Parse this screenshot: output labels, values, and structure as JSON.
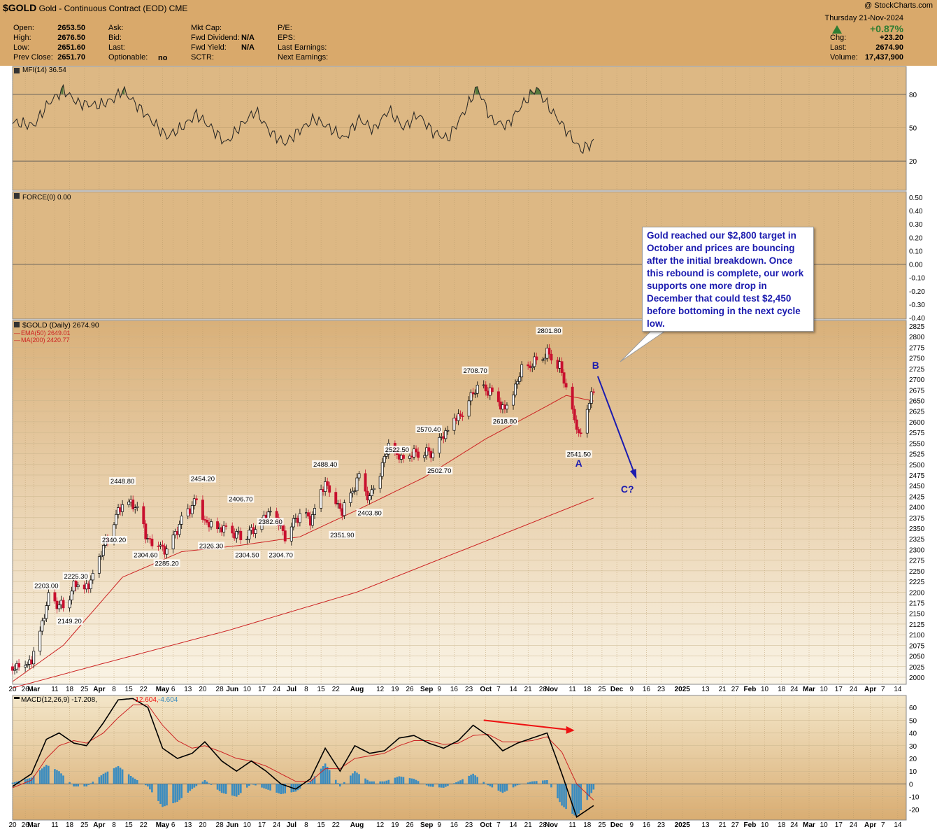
{
  "header": {
    "symbol": "$GOLD",
    "name": "Gold - Continuous Contract (EOD)",
    "exchange": "CME",
    "date": "Thursday  21-Nov-2024",
    "watermark": "@ StockCharts.com",
    "pct_change": "+0.87%",
    "quote": [
      {
        "label": "Open:",
        "value": "2653.50"
      },
      {
        "label": "High:",
        "value": "2676.50"
      },
      {
        "label": "Low:",
        "value": "2651.60"
      },
      {
        "label": "Prev Close:",
        "value": "2651.70"
      }
    ],
    "col2": [
      {
        "label": "Ask:",
        "value": ""
      },
      {
        "label": "Bid:",
        "value": ""
      },
      {
        "label": "Last:",
        "value": ""
      },
      {
        "label": "Optionable:",
        "value": "no"
      }
    ],
    "col3": [
      {
        "label": "Mkt Cap:",
        "value": ""
      },
      {
        "label": "Fwd Dividend:",
        "value": "N/A"
      },
      {
        "label": "Fwd Yield:",
        "value": "N/A"
      },
      {
        "label": "SCTR:",
        "value": ""
      }
    ],
    "col4": [
      "P/E:",
      "EPS:",
      "Last Earnings:",
      "Next Earnings:"
    ],
    "right": [
      {
        "label": "Chg:",
        "value": "+23.20"
      },
      {
        "label": "Last:",
        "value": "2674.90"
      },
      {
        "label": "Volume:",
        "value": "17,437,900"
      }
    ]
  },
  "colors": {
    "header_bg": "#d9a96b",
    "panel_bg": "#ddb884",
    "price_bg_top": "#d9b079",
    "price_bg_bottom": "#faf4e6",
    "up": "#000000",
    "down": "#c8102e",
    "ma": "#cc2222",
    "mfi_fill": "#3f6e2f",
    "hist": "#3a8cc0",
    "annot_text": "#1b1baf",
    "arrow": "#1b1baf",
    "divergence": "#ee1111"
  },
  "chart_data": [
    {
      "type": "line",
      "title": "MFI(14) 36.54",
      "ylim": [
        0,
        100
      ],
      "yticks": [
        20,
        50,
        80
      ],
      "x": [
        "2024-02-20",
        "2024-03-01",
        "2024-03-08",
        "2024-03-15",
        "2024-03-22",
        "2024-04-01",
        "2024-04-08",
        "2024-04-12",
        "2024-04-19",
        "2024-04-26",
        "2024-05-03",
        "2024-05-10",
        "2024-05-17",
        "2024-05-24",
        "2024-05-31",
        "2024-06-07",
        "2024-06-14",
        "2024-06-21",
        "2024-06-28",
        "2024-07-05",
        "2024-07-12",
        "2024-07-19",
        "2024-07-26",
        "2024-08-02",
        "2024-08-09",
        "2024-08-16",
        "2024-08-23",
        "2024-08-30",
        "2024-09-06",
        "2024-09-13",
        "2024-09-20",
        "2024-09-27",
        "2024-10-04",
        "2024-10-11",
        "2024-10-18",
        "2024-10-25",
        "2024-10-31",
        "2024-11-08",
        "2024-11-15",
        "2024-11-21"
      ],
      "y": [
        55,
        52,
        72,
        84,
        72,
        70,
        76,
        84,
        70,
        56,
        42,
        50,
        62,
        50,
        36,
        52,
        65,
        46,
        36,
        48,
        58,
        50,
        40,
        58,
        48,
        66,
        50,
        62,
        46,
        40,
        62,
        86,
        56,
        52,
        70,
        86,
        68,
        48,
        30,
        37
      ]
    },
    {
      "type": "line",
      "title": "FORCE(0) 0.00",
      "ylim": [
        -0.5,
        0.5
      ],
      "yticks": [
        0.5,
        0.4,
        0.3,
        0.2,
        0.1,
        0.0,
        -0.1,
        -0.2,
        -0.3,
        -0.4
      ],
      "tick_labels": [
        "0.50",
        "0.40",
        "0.30",
        "0.20",
        "0.10",
        "0.00",
        "-0.10",
        "-0.20",
        "-0.30",
        "-0.40"
      ],
      "x": [
        "2024-02-20",
        "2024-11-21"
      ],
      "y": [
        0,
        0
      ]
    },
    {
      "type": "candlestick",
      "title": "$GOLD (Daily) 2674.90",
      "series_names": [
        "EMA(50) 2649.01",
        "MA(200) 2420.77"
      ],
      "ylim": [
        1975,
        2840
      ],
      "yticks": [
        2000,
        2025,
        2050,
        2075,
        2100,
        2125,
        2150,
        2175,
        2200,
        2225,
        2250,
        2275,
        2300,
        2325,
        2350,
        2375,
        2400,
        2425,
        2450,
        2475,
        2500,
        2525,
        2550,
        2575,
        2600,
        2625,
        2650,
        2675,
        2700,
        2725,
        2750,
        2775,
        2800,
        2825
      ],
      "close_anchors": {
        "x": [
          "2024-02-20",
          "2024-02-29",
          "2024-03-08",
          "2024-03-15",
          "2024-03-20",
          "2024-03-27",
          "2024-04-05",
          "2024-04-12",
          "2024-04-19",
          "2024-04-23",
          "2024-05-03",
          "2024-05-10",
          "2024-05-17",
          "2024-05-22",
          "2024-05-31",
          "2024-06-07",
          "2024-06-14",
          "2024-06-21",
          "2024-06-28",
          "2024-07-05",
          "2024-07-10",
          "2024-07-17",
          "2024-07-25",
          "2024-08-02",
          "2024-08-07",
          "2024-08-16",
          "2024-08-22",
          "2024-08-30",
          "2024-09-06",
          "2024-09-13",
          "2024-09-20",
          "2024-09-26",
          "2024-10-03",
          "2024-10-10",
          "2024-10-18",
          "2024-10-23",
          "2024-10-30",
          "2024-11-05",
          "2024-11-14",
          "2024-11-21"
        ],
        "y": [
          2025,
          2040,
          2185,
          2165,
          2215,
          2210,
          2330,
          2410,
          2400,
          2330,
          2300,
          2370,
          2420,
          2360,
          2345,
          2330,
          2345,
          2390,
          2335,
          2385,
          2370,
          2460,
          2390,
          2470,
          2420,
          2540,
          2510,
          2528,
          2525,
          2585,
          2625,
          2680,
          2675,
          2630,
          2720,
          2735,
          2760,
          2730,
          2565,
          2675
        ]
      },
      "ema50": {
        "x": [
          "2024-02-20",
          "2024-03-15",
          "2024-04-12",
          "2024-05-10",
          "2024-06-07",
          "2024-07-05",
          "2024-08-02",
          "2024-09-02",
          "2024-10-01",
          "2024-10-31",
          "2024-11-08",
          "2024-11-21"
        ],
        "y": [
          1990,
          2075,
          2235,
          2295,
          2310,
          2330,
          2395,
          2470,
          2560,
          2640,
          2662,
          2649
        ]
      },
      "ma200": {
        "x": [
          "2024-02-20",
          "2024-04-01",
          "2024-06-01",
          "2024-08-01",
          "2024-10-01",
          "2024-11-21"
        ],
        "y": [
          1975,
          2030,
          2110,
          2200,
          2320,
          2421
        ]
      },
      "annotations": [
        {
          "text": "2203.00",
          "x": "2024-03-07",
          "y": 2203
        },
        {
          "text": "2225.30",
          "x": "2024-03-21",
          "y": 2225.3
        },
        {
          "text": "2149.20",
          "x": "2024-03-18",
          "y": 2149.2
        },
        {
          "text": "2448.80",
          "x": "2024-04-12",
          "y": 2448.8
        },
        {
          "text": "2340.20",
          "x": "2024-04-08",
          "y": 2340.2
        },
        {
          "text": "2304.60",
          "x": "2024-04-23",
          "y": 2304.6
        },
        {
          "text": "2285.20",
          "x": "2024-05-03",
          "y": 2285.2
        },
        {
          "text": "2454.20",
          "x": "2024-05-20",
          "y": 2454.2
        },
        {
          "text": "2326.30",
          "x": "2024-05-24",
          "y": 2326.3
        },
        {
          "text": "2406.70",
          "x": "2024-06-07",
          "y": 2406.7
        },
        {
          "text": "2304.50",
          "x": "2024-06-10",
          "y": 2304.5
        },
        {
          "text": "2382.60",
          "x": "2024-06-21",
          "y": 2382.6
        },
        {
          "text": "2304.70",
          "x": "2024-06-26",
          "y": 2304.7
        },
        {
          "text": "2488.40",
          "x": "2024-07-17",
          "y": 2488.4
        },
        {
          "text": "2351.90",
          "x": "2024-07-25",
          "y": 2351.9
        },
        {
          "text": "2522.50",
          "x": "2024-08-20",
          "y": 2522.5
        },
        {
          "text": "2403.80",
          "x": "2024-08-07",
          "y": 2403.8
        },
        {
          "text": "2570.40",
          "x": "2024-09-04",
          "y": 2570.4
        },
        {
          "text": "2502.70",
          "x": "2024-09-09",
          "y": 2502.7
        },
        {
          "text": "2708.70",
          "x": "2024-09-26",
          "y": 2708.7
        },
        {
          "text": "2618.80",
          "x": "2024-10-10",
          "y": 2618.8
        },
        {
          "text": "2801.80",
          "x": "2024-10-31",
          "y": 2801.8
        },
        {
          "text": "2541.50",
          "x": "2024-11-14",
          "y": 2541.5
        }
      ],
      "wave_labels": [
        {
          "text": "B",
          "x": "2024-11-22",
          "y": 2725
        },
        {
          "text": "A",
          "x": "2024-11-14",
          "y": 2495
        },
        {
          "text": "C?",
          "x": "2024-12-07",
          "y": 2434
        }
      ]
    },
    {
      "type": "line",
      "title": "MACD(12,26,9) -17.208, -12.604, -4.604",
      "series_names": [
        "MACD",
        "Signal",
        "Histogram"
      ],
      "ylim": [
        -25,
        65
      ],
      "yticks": [
        -20,
        -10,
        0,
        10,
        20,
        30,
        40,
        50,
        60
      ],
      "x": [
        "2024-02-20",
        "2024-02-29",
        "2024-03-07",
        "2024-03-13",
        "2024-03-20",
        "2024-03-26",
        "2024-04-03",
        "2024-04-10",
        "2024-04-17",
        "2024-04-24",
        "2024-05-01",
        "2024-05-08",
        "2024-05-15",
        "2024-05-21",
        "2024-05-29",
        "2024-06-05",
        "2024-06-12",
        "2024-06-19",
        "2024-06-26",
        "2024-07-03",
        "2024-07-10",
        "2024-07-17",
        "2024-07-24",
        "2024-07-31",
        "2024-08-07",
        "2024-08-14",
        "2024-08-21",
        "2024-08-28",
        "2024-09-04",
        "2024-09-11",
        "2024-09-18",
        "2024-09-25",
        "2024-10-02",
        "2024-10-09",
        "2024-10-16",
        "2024-10-23",
        "2024-10-30",
        "2024-11-06",
        "2024-11-13",
        "2024-11-21"
      ],
      "macd": [
        -2,
        8,
        35,
        40,
        32,
        30,
        48,
        66,
        67,
        60,
        28,
        20,
        24,
        33,
        18,
        10,
        18,
        10,
        0,
        -4,
        4,
        28,
        10,
        30,
        24,
        26,
        36,
        38,
        32,
        28,
        34,
        46,
        38,
        26,
        32,
        36,
        40,
        8,
        -26,
        -17
      ],
      "signal": [
        -3,
        3,
        20,
        30,
        34,
        32,
        40,
        52,
        62,
        62,
        46,
        34,
        28,
        30,
        25,
        20,
        18,
        14,
        8,
        2,
        2,
        12,
        12,
        20,
        22,
        24,
        30,
        34,
        34,
        31,
        32,
        38,
        39,
        33,
        33,
        34,
        37,
        25,
        0,
        -12.6
      ],
      "divergence": {
        "from": {
          "x": "2024-09-30",
          "y": 50
        },
        "to": {
          "x": "2024-11-12",
          "y": 42
        }
      }
    }
  ],
  "x_axis": {
    "labels": [
      "20",
      "26",
      "Mar",
      "11",
      "18",
      "25",
      "Apr",
      "8",
      "15",
      "22",
      "May",
      "6",
      "13",
      "20",
      "28",
      "Jun",
      "10",
      "17",
      "24",
      "Jul",
      "8",
      "15",
      "22",
      "Aug",
      "12",
      "19",
      "26",
      "Sep",
      "9",
      "16",
      "23",
      "Oct",
      "7",
      "14",
      "21",
      "28",
      "Nov",
      "11",
      "18",
      "25",
      "Dec",
      "9",
      "16",
      "23",
      "2025",
      "13",
      "21",
      "27",
      "Feb",
      "10",
      "18",
      "24",
      "Mar",
      "10",
      "17",
      "24",
      "Apr",
      "7",
      "14"
    ],
    "dates": [
      "2024-02-20",
      "2024-02-26",
      "2024-03-01",
      "2024-03-11",
      "2024-03-18",
      "2024-03-25",
      "2024-04-01",
      "2024-04-08",
      "2024-04-15",
      "2024-04-22",
      "2024-05-01",
      "2024-05-06",
      "2024-05-13",
      "2024-05-20",
      "2024-05-28",
      "2024-06-03",
      "2024-06-10",
      "2024-06-17",
      "2024-06-24",
      "2024-07-01",
      "2024-07-08",
      "2024-07-15",
      "2024-07-22",
      "2024-08-01",
      "2024-08-12",
      "2024-08-19",
      "2024-08-26",
      "2024-09-03",
      "2024-09-09",
      "2024-09-16",
      "2024-09-23",
      "2024-10-01",
      "2024-10-07",
      "2024-10-14",
      "2024-10-21",
      "2024-10-28",
      "2024-11-01",
      "2024-11-11",
      "2024-11-18",
      "2024-11-25",
      "2024-12-02",
      "2024-12-09",
      "2024-12-16",
      "2024-12-23",
      "2025-01-02",
      "2025-01-13",
      "2025-01-21",
      "2025-01-27",
      "2025-02-03",
      "2025-02-10",
      "2025-02-18",
      "2025-02-24",
      "2025-03-03",
      "2025-03-10",
      "2025-03-17",
      "2025-03-24",
      "2025-04-01",
      "2025-04-07",
      "2025-04-14"
    ],
    "bold": [
      "Mar",
      "Apr",
      "May",
      "Jun",
      "Jul",
      "Aug",
      "Sep",
      "Oct",
      "Nov",
      "Dec",
      "2025",
      "Feb"
    ]
  },
  "annotation_text": "Gold reached our $2,800 target in October and prices are bouncing after the initial breakdown. Once this rebound is complete, our work supports one more drop in December that could test $2,450 before bottoming in the next cycle low."
}
